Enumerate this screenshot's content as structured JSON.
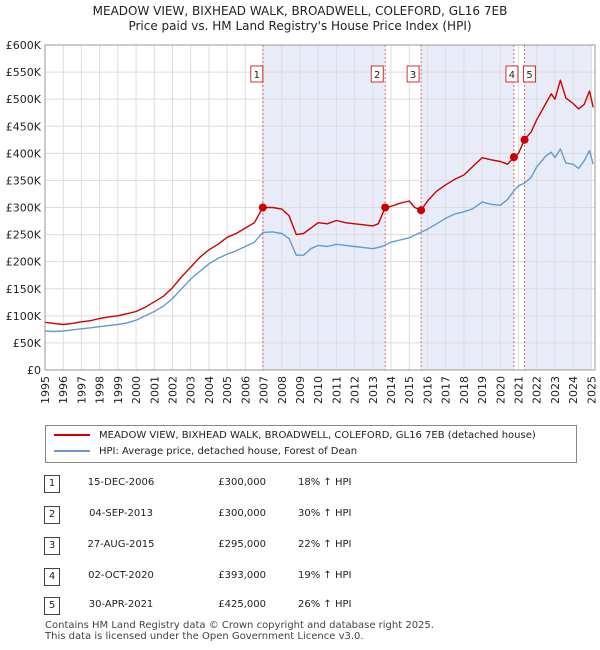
{
  "title_line1": "MEADOW VIEW, BIXHEAD WALK, BROADWELL, COLEFORD, GL16 7EB",
  "title_line2": "Price paid vs. HM Land Registry's House Price Index (HPI)",
  "colors": {
    "property": "#cc0000",
    "hpi": "#6699cc",
    "shade": "#e8ecf8",
    "grid": "#dddddd"
  },
  "legend": {
    "property_label": "MEADOW VIEW, BIXHEAD WALK, BROADWELL, COLEFORD, GL16 7EB (detached house)",
    "hpi_label": "HPI: Average price, detached house, Forest of Dean"
  },
  "sales": [
    {
      "num": "1",
      "date": "15-DEC-2006",
      "price": "£300,000",
      "hpi": "18% ↑ HPI"
    },
    {
      "num": "2",
      "date": "04-SEP-2013",
      "price": "£300,000",
      "hpi": "30% ↑ HPI"
    },
    {
      "num": "3",
      "date": "27-AUG-2015",
      "price": "£295,000",
      "hpi": "22% ↑ HPI"
    },
    {
      "num": "4",
      "date": "02-OCT-2020",
      "price": "£393,000",
      "hpi": "19% ↑ HPI"
    },
    {
      "num": "5",
      "date": "30-APR-2021",
      "price": "£425,000",
      "hpi": "26% ↑ HPI"
    }
  ],
  "footer": {
    "line1": "Contains HM Land Registry data © Crown copyright and database right 2025.",
    "line2": "This data is licensed under the Open Government Licence v3.0."
  },
  "chart_data": {
    "type": "line",
    "title": "Price paid vs. HM Land Registry's House Price Index (HPI)",
    "xlabel": "",
    "ylabel": "",
    "xlim": [
      1995,
      2025.2
    ],
    "ylim": [
      0,
      600000
    ],
    "x_ticks": [
      "1995",
      "1996",
      "1997",
      "1998",
      "1999",
      "2000",
      "2001",
      "2002",
      "2003",
      "2004",
      "2005",
      "2006",
      "2007",
      "2008",
      "2009",
      "2010",
      "2011",
      "2012",
      "2013",
      "2014",
      "2015",
      "2016",
      "2017",
      "2018",
      "2019",
      "2020",
      "2021",
      "2022",
      "2023",
      "2024",
      "2025"
    ],
    "y_ticks": [
      {
        "value": 0,
        "label": "£0"
      },
      {
        "value": 50000,
        "label": "£50K"
      },
      {
        "value": 100000,
        "label": "£100K"
      },
      {
        "value": 150000,
        "label": "£150K"
      },
      {
        "value": 200000,
        "label": "£200K"
      },
      {
        "value": 250000,
        "label": "£250K"
      },
      {
        "value": 300000,
        "label": "£300K"
      },
      {
        "value": 350000,
        "label": "£350K"
      },
      {
        "value": 400000,
        "label": "£400K"
      },
      {
        "value": 450000,
        "label": "£450K"
      },
      {
        "value": 500000,
        "label": "£500K"
      },
      {
        "value": 550000,
        "label": "£550K"
      },
      {
        "value": 600000,
        "label": "£600K"
      }
    ],
    "shaded_ranges": [
      [
        2006.96,
        2013.68
      ],
      [
        2015.65,
        2020.75
      ],
      [
        2021.33,
        2025.0
      ]
    ],
    "series": [
      {
        "name": "MEADOW VIEW, BIXHEAD WALK, BROADWELL, COLEFORD, GL16 7EB (detached house)",
        "color": "#cc0000",
        "x": [
          1995,
          1995.5,
          1996,
          1996.5,
          1997,
          1997.5,
          1998,
          1998.5,
          1999,
          1999.5,
          2000,
          2000.5,
          2001,
          2001.5,
          2002,
          2002.5,
          2003,
          2003.5,
          2004,
          2004.5,
          2005,
          2005.5,
          2006,
          2006.5,
          2006.96,
          2007.5,
          2008,
          2008.4,
          2008.8,
          2009.2,
          2009.6,
          2010,
          2010.5,
          2011,
          2011.5,
          2012,
          2012.5,
          2013,
          2013.3,
          2013.68,
          2014,
          2014.5,
          2015,
          2015.3,
          2015.65,
          2016,
          2016.5,
          2017,
          2017.5,
          2018,
          2018.5,
          2019,
          2019.5,
          2020,
          2020.4,
          2020.75,
          2021,
          2021.33,
          2021.7,
          2022,
          2022.5,
          2022.8,
          2023,
          2023.3,
          2023.6,
          2024,
          2024.3,
          2024.6,
          2024.9,
          2025.1
        ],
        "values": [
          88000,
          86000,
          84000,
          86000,
          89000,
          91000,
          95000,
          98000,
          100000,
          104000,
          108000,
          116000,
          126000,
          136000,
          152000,
          172000,
          190000,
          208000,
          222000,
          232000,
          245000,
          252000,
          262000,
          272000,
          300000,
          300000,
          297000,
          285000,
          250000,
          252000,
          262000,
          272000,
          270000,
          276000,
          272000,
          270000,
          268000,
          266000,
          270000,
          300000,
          302000,
          308000,
          312000,
          300000,
          295000,
          312000,
          330000,
          342000,
          352000,
          360000,
          376000,
          392000,
          388000,
          385000,
          380000,
          393000,
          400000,
          425000,
          440000,
          462000,
          492000,
          510000,
          500000,
          535000,
          502000,
          492000,
          482000,
          490000,
          515000,
          485000
        ]
      },
      {
        "name": "HPI: Average price, detached house, Forest of Dean",
        "color": "#6699cc",
        "x": [
          1995,
          1995.5,
          1996,
          1996.5,
          1997,
          1997.5,
          1998,
          1998.5,
          1999,
          1999.5,
          2000,
          2000.5,
          2001,
          2001.5,
          2002,
          2002.5,
          2003,
          2003.5,
          2004,
          2004.5,
          2005,
          2005.5,
          2006,
          2006.5,
          2006.96,
          2007.5,
          2008,
          2008.4,
          2008.8,
          2009.2,
          2009.6,
          2010,
          2010.5,
          2011,
          2011.5,
          2012,
          2012.5,
          2013,
          2013.5,
          2014,
          2014.5,
          2015,
          2015.5,
          2016,
          2016.5,
          2017,
          2017.5,
          2018,
          2018.5,
          2019,
          2019.5,
          2020,
          2020.4,
          2020.75,
          2021,
          2021.33,
          2021.7,
          2022,
          2022.5,
          2022.8,
          2023,
          2023.3,
          2023.6,
          2024,
          2024.3,
          2024.6,
          2024.9,
          2025.1
        ],
        "values": [
          72000,
          71000,
          72000,
          74000,
          76000,
          78000,
          80000,
          82000,
          84000,
          87000,
          92000,
          100000,
          108000,
          118000,
          132000,
          150000,
          168000,
          182000,
          196000,
          206000,
          214000,
          220000,
          228000,
          236000,
          254000,
          255000,
          252000,
          243000,
          212000,
          212000,
          224000,
          230000,
          228000,
          232000,
          230000,
          228000,
          226000,
          224000,
          228000,
          236000,
          240000,
          244000,
          252000,
          260000,
          270000,
          280000,
          288000,
          292000,
          298000,
          310000,
          306000,
          304000,
          315000,
          331000,
          340000,
          345000,
          356000,
          375000,
          395000,
          402000,
          392000,
          408000,
          382000,
          380000,
          372000,
          386000,
          405000,
          380000
        ]
      }
    ],
    "sale_points": [
      {
        "label": "1",
        "x": 2006.96,
        "value": 300000
      },
      {
        "label": "2",
        "x": 2013.68,
        "value": 300000
      },
      {
        "label": "3",
        "x": 2015.65,
        "value": 295000
      },
      {
        "label": "4",
        "x": 2020.75,
        "value": 393000
      },
      {
        "label": "5",
        "x": 2021.33,
        "value": 425000
      }
    ]
  }
}
